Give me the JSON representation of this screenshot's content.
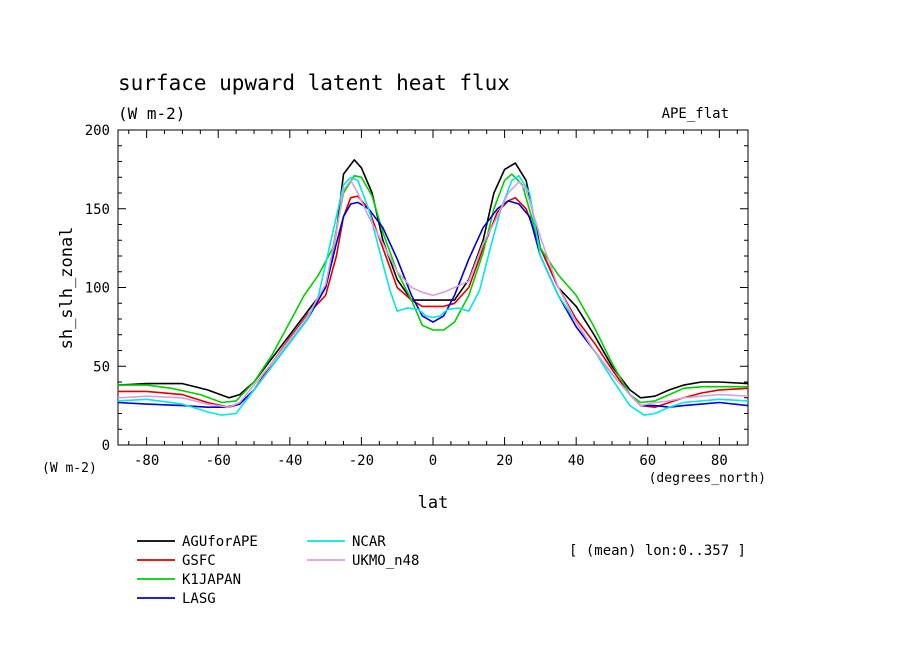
{
  "chart_data": {
    "type": "line",
    "title": "surface upward latent heat flux",
    "subtitle": "(W m-2)",
    "experiment": "APE_flat",
    "xlabel": "lat",
    "ylabel": "sh_slh_zonal",
    "x_unit": "(degrees_north)",
    "y_unit": "(W m-2)",
    "note": "[ (mean) lon:0..357 ]",
    "xlim": [
      -88,
      88
    ],
    "ylim": [
      0,
      200
    ],
    "x_ticks": [
      -80,
      -60,
      -40,
      -20,
      0,
      20,
      40,
      60,
      80
    ],
    "y_ticks": [
      0,
      50,
      100,
      150,
      200
    ],
    "grid": false,
    "legend_position": "bottom-left",
    "series": [
      {
        "name": "AGUforAPE",
        "color": "#000000",
        "points": [
          [
            -88,
            38
          ],
          [
            -80,
            39
          ],
          [
            -70,
            39
          ],
          [
            -63,
            35
          ],
          [
            -57,
            30
          ],
          [
            -54,
            32
          ],
          [
            -50,
            40
          ],
          [
            -45,
            55
          ],
          [
            -40,
            70
          ],
          [
            -35,
            85
          ],
          [
            -30,
            100
          ],
          [
            -27,
            135
          ],
          [
            -25,
            172
          ],
          [
            -22,
            181
          ],
          [
            -20,
            176
          ],
          [
            -17,
            160
          ],
          [
            -14,
            130
          ],
          [
            -10,
            105
          ],
          [
            -6,
            92
          ],
          [
            -3,
            92
          ],
          [
            0,
            92
          ],
          [
            3,
            92
          ],
          [
            6,
            92
          ],
          [
            10,
            105
          ],
          [
            14,
            130
          ],
          [
            17,
            160
          ],
          [
            20,
            175
          ],
          [
            23,
            179
          ],
          [
            26,
            168
          ],
          [
            30,
            125
          ],
          [
            35,
            100
          ],
          [
            40,
            88
          ],
          [
            45,
            70
          ],
          [
            50,
            50
          ],
          [
            55,
            35
          ],
          [
            58,
            30
          ],
          [
            62,
            31
          ],
          [
            66,
            35
          ],
          [
            70,
            38
          ],
          [
            75,
            40
          ],
          [
            80,
            40
          ],
          [
            88,
            39
          ]
        ]
      },
      {
        "name": "GSFC",
        "color": "#e00000",
        "points": [
          [
            -88,
            34
          ],
          [
            -80,
            34
          ],
          [
            -70,
            32
          ],
          [
            -63,
            27
          ],
          [
            -57,
            24
          ],
          [
            -54,
            26
          ],
          [
            -50,
            35
          ],
          [
            -45,
            52
          ],
          [
            -40,
            68
          ],
          [
            -35,
            83
          ],
          [
            -30,
            95
          ],
          [
            -27,
            120
          ],
          [
            -25,
            145
          ],
          [
            -23,
            157
          ],
          [
            -21,
            158
          ],
          [
            -18,
            150
          ],
          [
            -14,
            125
          ],
          [
            -10,
            100
          ],
          [
            -6,
            92
          ],
          [
            -3,
            88
          ],
          [
            0,
            88
          ],
          [
            3,
            88
          ],
          [
            6,
            90
          ],
          [
            10,
            100
          ],
          [
            14,
            125
          ],
          [
            18,
            148
          ],
          [
            21,
            155
          ],
          [
            23,
            157
          ],
          [
            26,
            150
          ],
          [
            30,
            125
          ],
          [
            35,
            100
          ],
          [
            40,
            80
          ],
          [
            45,
            65
          ],
          [
            50,
            48
          ],
          [
            55,
            32
          ],
          [
            58,
            25
          ],
          [
            62,
            24
          ],
          [
            66,
            27
          ],
          [
            70,
            30
          ],
          [
            75,
            33
          ],
          [
            80,
            35
          ],
          [
            88,
            36
          ]
        ]
      },
      {
        "name": "K1JAPAN",
        "color": "#00d000",
        "points": [
          [
            -88,
            38
          ],
          [
            -80,
            38
          ],
          [
            -73,
            36
          ],
          [
            -65,
            32
          ],
          [
            -59,
            27
          ],
          [
            -55,
            28
          ],
          [
            -50,
            40
          ],
          [
            -45,
            57
          ],
          [
            -40,
            78
          ],
          [
            -36,
            95
          ],
          [
            -32,
            108
          ],
          [
            -28,
            125
          ],
          [
            -25,
            160
          ],
          [
            -22,
            171
          ],
          [
            -20,
            170
          ],
          [
            -17,
            158
          ],
          [
            -14,
            135
          ],
          [
            -10,
            110
          ],
          [
            -6,
            92
          ],
          [
            -3,
            76
          ],
          [
            0,
            73
          ],
          [
            3,
            73
          ],
          [
            6,
            78
          ],
          [
            10,
            95
          ],
          [
            14,
            122
          ],
          [
            17,
            150
          ],
          [
            20,
            168
          ],
          [
            22,
            172
          ],
          [
            25,
            165
          ],
          [
            30,
            125
          ],
          [
            35,
            108
          ],
          [
            40,
            95
          ],
          [
            45,
            75
          ],
          [
            50,
            52
          ],
          [
            55,
            32
          ],
          [
            58,
            27
          ],
          [
            62,
            28
          ],
          [
            66,
            32
          ],
          [
            70,
            36
          ],
          [
            75,
            37
          ],
          [
            80,
            37
          ],
          [
            88,
            37
          ]
        ]
      },
      {
        "name": "LASG",
        "color": "#0000d8",
        "points": [
          [
            -88,
            27
          ],
          [
            -80,
            26
          ],
          [
            -70,
            25
          ],
          [
            -63,
            24
          ],
          [
            -58,
            24
          ],
          [
            -54,
            26
          ],
          [
            -50,
            35
          ],
          [
            -45,
            50
          ],
          [
            -40,
            65
          ],
          [
            -35,
            80
          ],
          [
            -30,
            100
          ],
          [
            -27,
            128
          ],
          [
            -25,
            145
          ],
          [
            -23,
            153
          ],
          [
            -21,
            154
          ],
          [
            -18,
            150
          ],
          [
            -14,
            138
          ],
          [
            -10,
            118
          ],
          [
            -6,
            95
          ],
          [
            -3,
            82
          ],
          [
            0,
            78
          ],
          [
            3,
            82
          ],
          [
            6,
            95
          ],
          [
            10,
            118
          ],
          [
            14,
            138
          ],
          [
            18,
            150
          ],
          [
            21,
            155
          ],
          [
            24,
            153
          ],
          [
            27,
            145
          ],
          [
            30,
            120
          ],
          [
            35,
            95
          ],
          [
            40,
            75
          ],
          [
            45,
            60
          ],
          [
            50,
            45
          ],
          [
            55,
            32
          ],
          [
            58,
            25
          ],
          [
            62,
            25
          ],
          [
            66,
            24
          ],
          [
            70,
            25
          ],
          [
            75,
            26
          ],
          [
            80,
            27
          ],
          [
            88,
            25
          ]
        ]
      },
      {
        "name": "NCAR",
        "color": "#00e8e8",
        "points": [
          [
            -88,
            28
          ],
          [
            -80,
            29
          ],
          [
            -70,
            26
          ],
          [
            -63,
            21
          ],
          [
            -59,
            19
          ],
          [
            -55,
            20
          ],
          [
            -51,
            32
          ],
          [
            -45,
            50
          ],
          [
            -40,
            65
          ],
          [
            -35,
            80
          ],
          [
            -32,
            95
          ],
          [
            -28,
            135
          ],
          [
            -25,
            165
          ],
          [
            -23,
            170
          ],
          [
            -21,
            168
          ],
          [
            -18,
            150
          ],
          [
            -14,
            115
          ],
          [
            -12,
            98
          ],
          [
            -10,
            85
          ],
          [
            -7,
            87
          ],
          [
            -4,
            86
          ],
          [
            -2,
            82
          ],
          [
            0,
            81
          ],
          [
            2,
            82
          ],
          [
            4,
            86
          ],
          [
            7,
            87
          ],
          [
            10,
            85
          ],
          [
            13,
            98
          ],
          [
            16,
            125
          ],
          [
            19,
            150
          ],
          [
            22,
            168
          ],
          [
            24,
            171
          ],
          [
            27,
            160
          ],
          [
            30,
            120
          ],
          [
            35,
            95
          ],
          [
            40,
            78
          ],
          [
            45,
            60
          ],
          [
            50,
            42
          ],
          [
            55,
            25
          ],
          [
            59,
            19
          ],
          [
            62,
            20
          ],
          [
            66,
            24
          ],
          [
            70,
            27
          ],
          [
            75,
            28
          ],
          [
            80,
            29
          ],
          [
            88,
            28
          ]
        ]
      },
      {
        "name": "UKMO_n48",
        "color": "#d8a0d8",
        "points": [
          [
            -88,
            30
          ],
          [
            -80,
            31
          ],
          [
            -70,
            30
          ],
          [
            -63,
            26
          ],
          [
            -57,
            24
          ],
          [
            -54,
            27
          ],
          [
            -50,
            38
          ],
          [
            -45,
            52
          ],
          [
            -40,
            67
          ],
          [
            -35,
            82
          ],
          [
            -30,
            102
          ],
          [
            -27,
            135
          ],
          [
            -25,
            162
          ],
          [
            -23,
            168
          ],
          [
            -21,
            160
          ],
          [
            -18,
            145
          ],
          [
            -14,
            128
          ],
          [
            -10,
            110
          ],
          [
            -6,
            100
          ],
          [
            -3,
            97
          ],
          [
            0,
            95
          ],
          [
            3,
            97
          ],
          [
            6,
            100
          ],
          [
            10,
            104
          ],
          [
            14,
            128
          ],
          [
            18,
            145
          ],
          [
            21,
            160
          ],
          [
            24,
            167
          ],
          [
            26,
            162
          ],
          [
            30,
            132
          ],
          [
            35,
            100
          ],
          [
            40,
            78
          ],
          [
            45,
            60
          ],
          [
            50,
            45
          ],
          [
            55,
            32
          ],
          [
            58,
            25
          ],
          [
            62,
            27
          ],
          [
            66,
            28
          ],
          [
            70,
            30
          ],
          [
            75,
            31
          ],
          [
            80,
            32
          ],
          [
            88,
            31
          ]
        ]
      }
    ]
  }
}
